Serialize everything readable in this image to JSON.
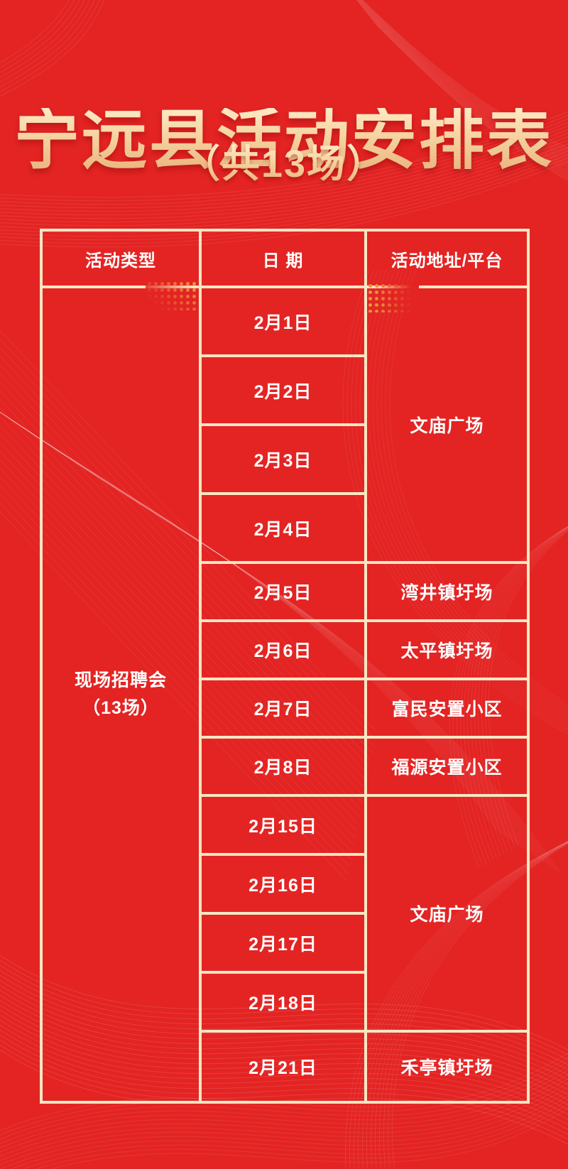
{
  "poster": {
    "title": "宁远县活动安排表",
    "subtitle": "（共13场）"
  },
  "table": {
    "headers": [
      "活动类型",
      "日 期",
      "活动地址/平台"
    ],
    "activity_type": "现场招聘会",
    "activity_count": "（13场）",
    "rows": [
      {
        "date": "2月1日",
        "location": "文庙广场"
      },
      {
        "date": "2月2日"
      },
      {
        "date": "2月3日"
      },
      {
        "date": "2月4日"
      },
      {
        "date": "2月5日",
        "location": "湾井镇圩场"
      },
      {
        "date": "2月6日",
        "location": "太平镇圩场"
      },
      {
        "date": "2月7日",
        "location": "富民安置小区"
      },
      {
        "date": "2月8日",
        "location": "福源安置小区"
      },
      {
        "date": "2月15日",
        "location": "文庙广场"
      },
      {
        "date": "2月16日"
      },
      {
        "date": "2月17日"
      },
      {
        "date": "2月18日"
      },
      {
        "date": "2月21日",
        "location": "禾亭镇圩场"
      }
    ]
  },
  "colors": {
    "background_red": "#e32423",
    "table_border": "#f8e7c3",
    "cell_text": "#ffffff",
    "title_gold_light": "#fdeac6",
    "title_gold_dark": "#e9b47c",
    "dot_gold": "#ea993d",
    "wave_line": "#ffffff"
  }
}
